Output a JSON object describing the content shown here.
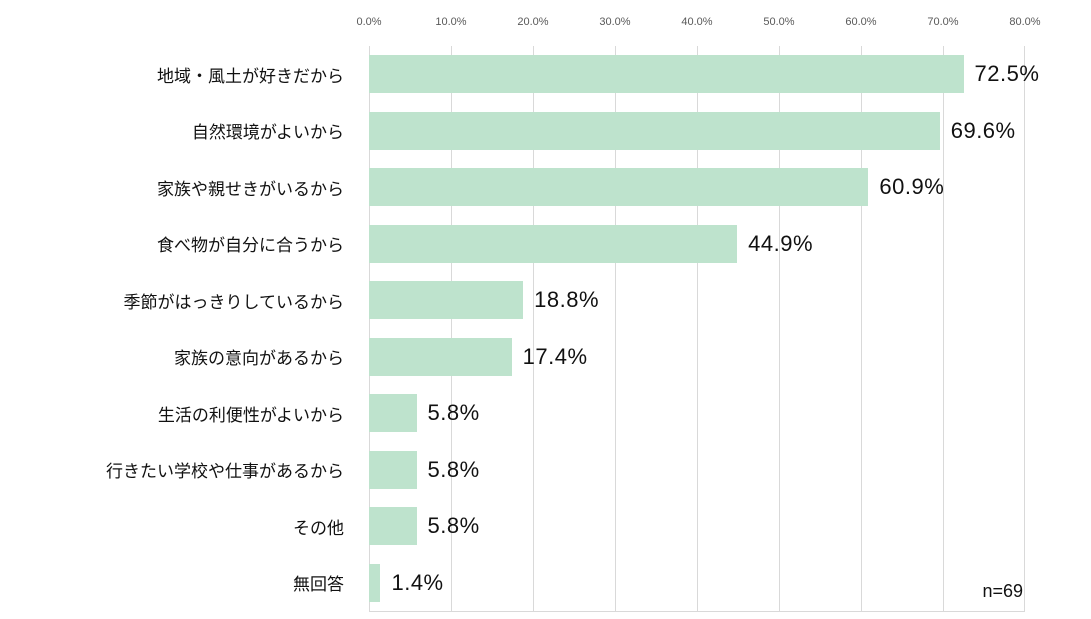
{
  "chart_data": {
    "type": "bar",
    "orientation": "horizontal",
    "title": "",
    "categories": [
      "地域・風土が好きだから",
      "自然環境がよいから",
      "家族や親せきがいるから",
      "食べ物が自分に合うから",
      "季節がはっきりしているから",
      "家族の意向があるから",
      "生活の利便性がよいから",
      "行きたい学校や仕事があるから",
      "その他",
      "無回答"
    ],
    "values": [
      72.5,
      69.6,
      60.9,
      44.9,
      18.8,
      17.4,
      5.8,
      5.8,
      5.8,
      1.4
    ],
    "value_labels": [
      "72.5%",
      "69.6%",
      "60.9%",
      "44.9%",
      "18.8%",
      "17.4%",
      "5.8%",
      "5.8%",
      "5.8%",
      "1.4%"
    ],
    "x_ticks": [
      0,
      10,
      20,
      30,
      40,
      50,
      60,
      70,
      80
    ],
    "x_tick_labels": [
      "0.0%",
      "10.0%",
      "20.0%",
      "30.0%",
      "40.0%",
      "50.0%",
      "60.0%",
      "70.0%",
      "80.0%"
    ],
    "xlim": [
      0,
      80
    ],
    "grid": true,
    "legend": false,
    "annotation": "n=69",
    "colors": {
      "bar": "#bee3cd",
      "gridline": "#d9d9d9",
      "tick_label": "#595959",
      "text": "#111111",
      "background": "#ffffff"
    }
  }
}
